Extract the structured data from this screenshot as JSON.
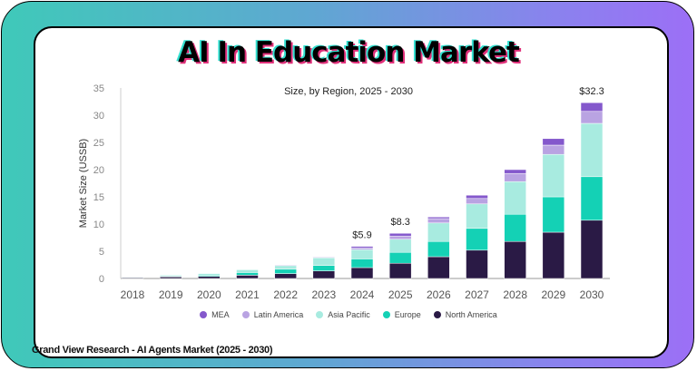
{
  "title": "AI In Education Market",
  "footer": "Grand View Research - AI Agents Market (2025 - 2030)",
  "chart_data": {
    "type": "bar",
    "stacked": true,
    "subtitle": "Size, by Region, 2025 - 2030",
    "xlabel": "",
    "ylabel": "Market Size (USSB)",
    "ylim": [
      0,
      35
    ],
    "yticks": [
      0,
      5,
      10,
      15,
      20,
      25,
      30,
      35
    ],
    "grid": false,
    "legend_position": "bottom",
    "categories": [
      "2018",
      "2019",
      "2020",
      "2021",
      "2022",
      "2023",
      "2024",
      "2025",
      "2026",
      "2027",
      "2028",
      "2029",
      "2030"
    ],
    "series": [
      {
        "name": "North America",
        "color": "#2a1a45",
        "values": [
          0.2,
          0.3,
          0.4,
          0.6,
          0.9,
          1.4,
          2.0,
          2.8,
          4.0,
          5.2,
          6.8,
          8.5,
          10.7
        ]
      },
      {
        "name": "Europe",
        "color": "#14d1b5",
        "values": [
          0.05,
          0.1,
          0.2,
          0.5,
          0.8,
          1.0,
          1.6,
          2.0,
          2.8,
          4.0,
          5.0,
          6.5,
          8.0
        ]
      },
      {
        "name": "Asia Pacific",
        "color": "#a8ebe0",
        "values": [
          0.05,
          0.2,
          0.3,
          0.5,
          0.7,
          1.4,
          1.7,
          2.4,
          3.4,
          4.5,
          6.0,
          7.8,
          9.8
        ]
      },
      {
        "name": "Latin America",
        "color": "#b9a3e2",
        "values": [
          0,
          0,
          0,
          0,
          0.05,
          0.1,
          0.3,
          0.6,
          0.8,
          1.0,
          1.5,
          1.7,
          2.2
        ]
      },
      {
        "name": "MEA",
        "color": "#8458cc",
        "values": [
          0,
          0,
          0,
          0,
          0.05,
          0.1,
          0.3,
          0.5,
          0.3,
          0.6,
          0.7,
          1.2,
          1.6
        ]
      }
    ],
    "annotations": [
      {
        "category": "2024",
        "text": "$5.9"
      },
      {
        "category": "2025",
        "text": "$8.3"
      },
      {
        "category": "2030",
        "text": "$32.3"
      }
    ],
    "legend_order": [
      "MEA",
      "Latin America",
      "Asia Pacific",
      "Europe",
      "North America"
    ]
  }
}
